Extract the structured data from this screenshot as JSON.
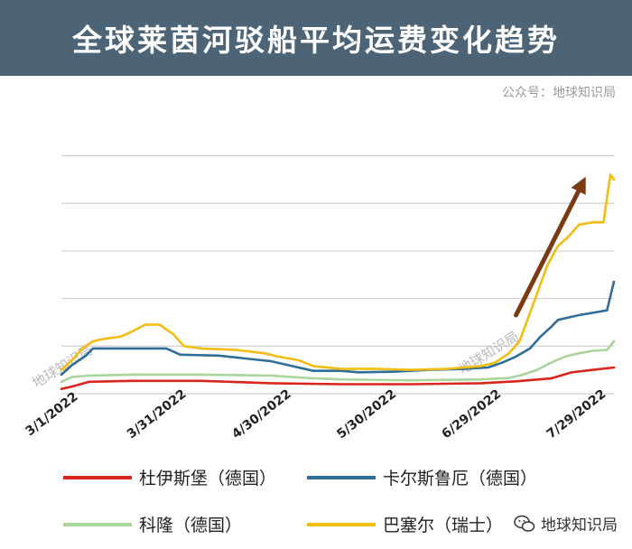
{
  "header": {
    "title": "全球莱茵河驳船平均运费变化趋势"
  },
  "watermark": {
    "top": "公众号：地球知识局",
    "footer": "地球知识局",
    "in_plot_1": "地球知识局",
    "in_plot_2": "地球知识局"
  },
  "colors": {
    "title_bg": "#4c6475",
    "red": "#d9261c",
    "blue": "#2e6e99",
    "green": "#a9d49a",
    "yellow": "#f2bd13",
    "arrow": "#7a3a12",
    "grid": "#d0d0d0"
  },
  "chart_data": {
    "type": "line",
    "x_tick_labels": [
      "3/1/2022",
      "3/31/2022",
      "4/30/2022",
      "5/30/2022",
      "6/29/2022",
      "7/29/2022"
    ],
    "x_tick_days": [
      0,
      30,
      60,
      90,
      120,
      150
    ],
    "x_range_days": [
      0,
      158
    ],
    "y_range": [
      0,
      5.5
    ],
    "y_gridlines": [
      0,
      1,
      2,
      3,
      4,
      5
    ],
    "y_tick_labels_shown": false,
    "grid": true,
    "legend_position": "bottom",
    "annotation": "arrow indicating sharp rise in July 2022",
    "series": [
      {
        "name": "杜伊斯堡（德国）",
        "color_key": "red",
        "points": [
          [
            0,
            0.1
          ],
          [
            3,
            0.15
          ],
          [
            8,
            0.25
          ],
          [
            20,
            0.27
          ],
          [
            40,
            0.27
          ],
          [
            60,
            0.22
          ],
          [
            80,
            0.2
          ],
          [
            100,
            0.2
          ],
          [
            120,
            0.22
          ],
          [
            130,
            0.26
          ],
          [
            140,
            0.32
          ],
          [
            146,
            0.45
          ],
          [
            152,
            0.5
          ],
          [
            158,
            0.55
          ]
        ]
      },
      {
        "name": "卡尔斯鲁厄（德国）",
        "color_key": "blue",
        "points": [
          [
            0,
            0.4
          ],
          [
            3,
            0.6
          ],
          [
            7,
            0.8
          ],
          [
            9,
            0.95
          ],
          [
            20,
            0.95
          ],
          [
            30,
            0.95
          ],
          [
            34,
            0.82
          ],
          [
            45,
            0.8
          ],
          [
            55,
            0.72
          ],
          [
            60,
            0.68
          ],
          [
            66,
            0.58
          ],
          [
            72,
            0.48
          ],
          [
            80,
            0.48
          ],
          [
            85,
            0.45
          ],
          [
            95,
            0.46
          ],
          [
            105,
            0.5
          ],
          [
            115,
            0.52
          ],
          [
            122,
            0.55
          ],
          [
            126,
            0.65
          ],
          [
            130,
            0.78
          ],
          [
            134,
            0.95
          ],
          [
            137,
            1.2
          ],
          [
            140,
            1.4
          ],
          [
            142,
            1.55
          ],
          [
            145,
            1.6
          ],
          [
            148,
            1.65
          ],
          [
            152,
            1.7
          ],
          [
            156,
            1.75
          ],
          [
            158,
            2.35
          ]
        ]
      },
      {
        "name": "科隆（德国）",
        "color_key": "green",
        "points": [
          [
            0,
            0.25
          ],
          [
            3,
            0.35
          ],
          [
            8,
            0.38
          ],
          [
            20,
            0.4
          ],
          [
            40,
            0.4
          ],
          [
            60,
            0.38
          ],
          [
            70,
            0.33
          ],
          [
            80,
            0.3
          ],
          [
            100,
            0.28
          ],
          [
            120,
            0.3
          ],
          [
            128,
            0.33
          ],
          [
            132,
            0.4
          ],
          [
            136,
            0.5
          ],
          [
            140,
            0.65
          ],
          [
            144,
            0.78
          ],
          [
            148,
            0.85
          ],
          [
            152,
            0.9
          ],
          [
            156,
            0.92
          ],
          [
            158,
            1.1
          ]
        ]
      },
      {
        "name": "巴塞尔（瑞士）",
        "color_key": "yellow",
        "points": [
          [
            0,
            0.5
          ],
          [
            3,
            0.7
          ],
          [
            6,
            0.95
          ],
          [
            9,
            1.1
          ],
          [
            12,
            1.15
          ],
          [
            17,
            1.2
          ],
          [
            20,
            1.3
          ],
          [
            24,
            1.45
          ],
          [
            28,
            1.45
          ],
          [
            32,
            1.25
          ],
          [
            35,
            1.0
          ],
          [
            40,
            0.95
          ],
          [
            50,
            0.92
          ],
          [
            58,
            0.85
          ],
          [
            62,
            0.78
          ],
          [
            68,
            0.7
          ],
          [
            72,
            0.58
          ],
          [
            80,
            0.52
          ],
          [
            90,
            0.52
          ],
          [
            100,
            0.5
          ],
          [
            110,
            0.52
          ],
          [
            120,
            0.58
          ],
          [
            124,
            0.65
          ],
          [
            128,
            0.85
          ],
          [
            131,
            1.1
          ],
          [
            133,
            1.5
          ],
          [
            136,
            2.1
          ],
          [
            139,
            2.7
          ],
          [
            142,
            3.1
          ],
          [
            145,
            3.3
          ],
          [
            148,
            3.55
          ],
          [
            152,
            3.6
          ],
          [
            155,
            3.6
          ],
          [
            157,
            4.6
          ],
          [
            158,
            4.5
          ]
        ]
      }
    ]
  }
}
